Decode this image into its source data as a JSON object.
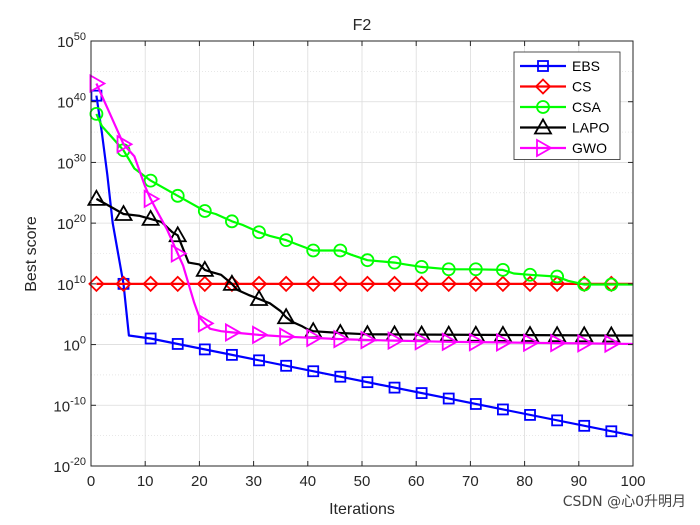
{
  "chart_data": {
    "type": "line",
    "title": "F2",
    "xlabel": "Iterations",
    "ylabel": "Best score",
    "xlim": [
      0,
      100
    ],
    "ylim_log10": [
      -20,
      50
    ],
    "yscale": "log",
    "grid": true,
    "legend_position": "top-right",
    "x_ticks": [
      "0",
      "10",
      "20",
      "30",
      "40",
      "50",
      "60",
      "70",
      "80",
      "90",
      "100"
    ],
    "y_ticks": [
      {
        "base": "10",
        "exp": "-20",
        "log": -20
      },
      {
        "base": "10",
        "exp": "-10",
        "log": -10
      },
      {
        "base": "10",
        "exp": "0",
        "log": 0
      },
      {
        "base": "10",
        "exp": "10",
        "log": 10
      },
      {
        "base": "10",
        "exp": "20",
        "log": 20
      },
      {
        "base": "10",
        "exp": "30",
        "log": 30
      },
      {
        "base": "10",
        "exp": "40",
        "log": 40
      },
      {
        "base": "10",
        "exp": "50",
        "log": 50
      }
    ],
    "marker_iterations": [
      1,
      6,
      11,
      16,
      21,
      26,
      31,
      36,
      41,
      46,
      51,
      56,
      61,
      66,
      71,
      76,
      81,
      86,
      91,
      96
    ],
    "series": [
      {
        "name": "EBS",
        "color": "#0000ff",
        "marker": "square",
        "points": [
          [
            1,
            41
          ],
          [
            2,
            35
          ],
          [
            3,
            28
          ],
          [
            4,
            20
          ],
          [
            5,
            15
          ],
          [
            6,
            10
          ],
          [
            7,
            1.5
          ],
          [
            11,
            1.0
          ],
          [
            100,
            -15
          ]
        ]
      },
      {
        "name": "CS",
        "color": "#ff0000",
        "marker": "diamond",
        "points": [
          [
            1,
            10
          ],
          [
            100,
            10
          ]
        ]
      },
      {
        "name": "CSA",
        "color": "#00ff00",
        "marker": "circle",
        "points": [
          [
            1,
            38
          ],
          [
            2,
            36
          ],
          [
            4,
            34
          ],
          [
            6,
            32
          ],
          [
            8,
            29
          ],
          [
            11,
            27
          ],
          [
            13,
            26
          ],
          [
            16,
            24.5
          ],
          [
            19,
            23
          ],
          [
            21,
            22
          ],
          [
            23,
            21.5
          ],
          [
            26,
            20.3
          ],
          [
            28,
            19.7
          ],
          [
            31,
            18.5
          ],
          [
            33,
            17.9
          ],
          [
            36,
            17.2
          ],
          [
            38,
            16.5
          ],
          [
            41,
            15.5
          ],
          [
            46,
            15.5
          ],
          [
            48,
            14.8
          ],
          [
            51,
            13.9
          ],
          [
            56,
            13.5
          ],
          [
            58,
            13.2
          ],
          [
            61,
            12.8
          ],
          [
            66,
            12.4
          ],
          [
            71,
            12.4
          ],
          [
            76,
            12.3
          ],
          [
            78,
            11.7
          ],
          [
            81,
            11.5
          ],
          [
            86,
            11.2
          ],
          [
            88,
            10.5
          ],
          [
            91,
            9.9
          ],
          [
            100,
            9.9
          ]
        ]
      },
      {
        "name": "LAPO",
        "color": "#000000",
        "marker": "triangle",
        "points": [
          [
            1,
            24
          ],
          [
            3,
            23
          ],
          [
            6,
            21.5
          ],
          [
            9,
            21.2
          ],
          [
            11,
            20.7
          ],
          [
            13,
            20.2
          ],
          [
            15,
            18.5
          ],
          [
            16,
            18.0
          ],
          [
            18,
            13.5
          ],
          [
            20,
            13.2
          ],
          [
            21,
            12.3
          ],
          [
            22,
            12.0
          ],
          [
            24,
            11.5
          ],
          [
            26,
            10.0
          ],
          [
            27,
            9.0
          ],
          [
            29,
            8.2
          ],
          [
            31,
            7.5
          ],
          [
            33,
            6.8
          ],
          [
            35,
            5.5
          ],
          [
            36,
            4.5
          ],
          [
            37,
            3.8
          ],
          [
            39,
            3.0
          ],
          [
            40,
            2.5
          ],
          [
            41,
            2.2
          ],
          [
            46,
            1.9
          ],
          [
            51,
            1.7
          ],
          [
            96,
            1.5
          ],
          [
            100,
            1.5
          ]
        ]
      },
      {
        "name": "GWO",
        "color": "#ff00ff",
        "marker": "triangle-right",
        "points": [
          [
            1,
            43
          ],
          [
            2,
            41
          ],
          [
            4,
            37
          ],
          [
            6,
            33
          ],
          [
            8,
            31
          ],
          [
            10,
            26
          ],
          [
            11,
            24
          ],
          [
            12,
            22.3
          ],
          [
            14,
            19
          ],
          [
            16,
            15
          ],
          [
            17,
            13
          ],
          [
            19,
            7
          ],
          [
            20,
            4.5
          ],
          [
            21,
            3.5
          ],
          [
            22,
            2.6
          ],
          [
            24,
            2.2
          ],
          [
            26,
            2.0
          ],
          [
            31,
            1.6
          ],
          [
            36,
            1.3
          ],
          [
            41,
            1.1
          ],
          [
            46,
            0.9
          ],
          [
            51,
            0.75
          ],
          [
            56,
            0.65
          ],
          [
            61,
            0.55
          ],
          [
            66,
            0.45
          ],
          [
            71,
            0.4
          ],
          [
            76,
            0.35
          ],
          [
            81,
            0.3
          ],
          [
            86,
            0.25
          ],
          [
            91,
            0.2
          ],
          [
            96,
            0.15
          ],
          [
            100,
            0.1
          ]
        ]
      }
    ]
  },
  "watermark": "CSDN @心0升明月"
}
